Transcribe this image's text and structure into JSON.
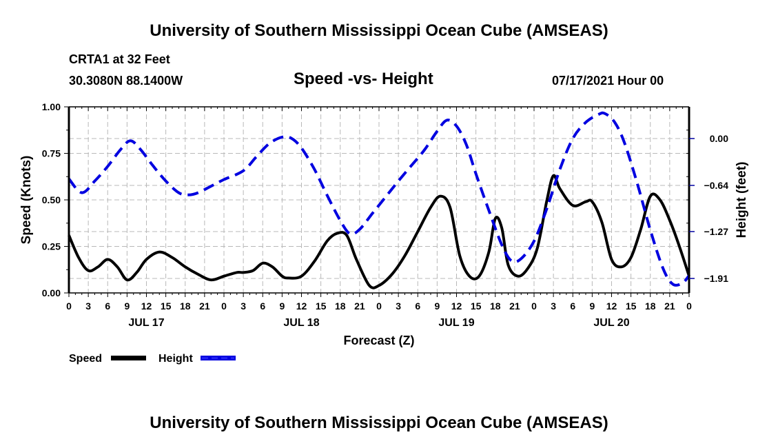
{
  "header": {
    "title": "University of Southern Mississippi Ocean Cube (AMSEAS)",
    "station": "CRTA1 at 32 Feet",
    "coordinates": "30.3080N  88.1400W",
    "subtitle": "Speed -vs- Height",
    "date": "07/17/2021 Hour 00"
  },
  "footer": {
    "title": "University of Southern Mississippi Ocean Cube (AMSEAS)"
  },
  "chart_data": {
    "type": "line",
    "title": "Speed -vs- Height",
    "xlabel": "Forecast (Z)",
    "ylabel": "Speed (Knots)",
    "y2label": "Height (feet)",
    "xlim": [
      0,
      96
    ],
    "ylim": [
      0,
      1.0
    ],
    "y2lim": [
      -2.05,
      0.49
    ],
    "grid": true,
    "x_ticks": [
      0,
      3,
      6,
      9,
      12,
      15,
      18,
      21,
      24,
      27,
      30,
      33,
      36,
      39,
      42,
      45,
      48,
      51,
      54,
      57,
      60,
      63,
      66,
      69,
      72,
      75,
      78,
      81,
      84,
      87,
      90,
      93,
      96
    ],
    "x_tick_labels": [
      "0",
      "3",
      "6",
      "9",
      "12",
      "15",
      "18",
      "21",
      "0",
      "3",
      "6",
      "9",
      "12",
      "15",
      "18",
      "21",
      "0",
      "3",
      "6",
      "9",
      "12",
      "15",
      "18",
      "21",
      "0",
      "3",
      "6",
      "9",
      "12",
      "15",
      "18",
      "21",
      "0"
    ],
    "day_labels": [
      {
        "label": "JUL 17",
        "hour": 12
      },
      {
        "label": "JUL 18",
        "hour": 36
      },
      {
        "label": "JUL 19",
        "hour": 60
      },
      {
        "label": "JUL 20",
        "hour": 84
      }
    ],
    "y_ticks": [
      0.0,
      0.25,
      0.5,
      0.75,
      1.0
    ],
    "y_tick_labels": [
      "0.00",
      "0.25",
      "0.50",
      "0.75",
      "1.00"
    ],
    "y2_ticks": [
      0.0,
      -0.64,
      -1.27,
      -1.91
    ],
    "y2_tick_labels": [
      "0.00",
      "-0.64",
      "-1.27",
      "-1.91"
    ],
    "legend": {
      "placement": "bottom-left",
      "entries": [
        {
          "label": "Speed",
          "style": "solid",
          "color": "#000000"
        },
        {
          "label": "Height",
          "style": "dashed",
          "color": "#0000e0"
        }
      ]
    },
    "series": [
      {
        "name": "Speed",
        "axis": "left",
        "color": "#000000",
        "x": [
          0,
          1.5,
          3,
          4.5,
          6,
          7.5,
          9,
          10.5,
          12,
          14,
          16,
          18,
          20,
          22,
          24,
          26,
          27,
          28.5,
          30,
          31.5,
          33,
          34,
          36,
          38,
          40,
          41.5,
          43,
          44.5,
          46.5,
          48,
          50,
          52,
          54,
          56,
          57.5,
          59,
          60.5,
          62,
          63.5,
          65,
          66,
          67,
          68,
          69.5,
          71,
          72.5,
          74,
          75,
          76,
          78,
          80,
          81,
          82.5,
          84,
          85.5,
          87,
          88.5,
          90,
          91.5,
          93,
          94.5,
          96
        ],
        "values": [
          0.31,
          0.19,
          0.12,
          0.14,
          0.18,
          0.14,
          0.07,
          0.11,
          0.18,
          0.22,
          0.19,
          0.14,
          0.1,
          0.07,
          0.09,
          0.11,
          0.11,
          0.12,
          0.16,
          0.14,
          0.09,
          0.08,
          0.09,
          0.17,
          0.28,
          0.32,
          0.31,
          0.18,
          0.04,
          0.04,
          0.1,
          0.2,
          0.33,
          0.46,
          0.52,
          0.46,
          0.2,
          0.09,
          0.09,
          0.22,
          0.4,
          0.35,
          0.15,
          0.09,
          0.13,
          0.24,
          0.5,
          0.63,
          0.56,
          0.47,
          0.49,
          0.49,
          0.38,
          0.18,
          0.14,
          0.19,
          0.34,
          0.52,
          0.5,
          0.39,
          0.25,
          0.09
        ]
      },
      {
        "name": "Height",
        "axis": "right",
        "color": "#0000e0",
        "x": [
          0,
          2,
          4,
          6,
          8,
          9.5,
          11,
          13,
          15,
          17,
          18.5,
          20,
          22,
          24,
          27,
          29,
          31,
          33,
          34.5,
          36,
          38,
          40,
          42,
          43.5,
          45,
          47,
          49,
          51,
          53,
          55,
          57,
          58.5,
          60,
          61.5,
          63,
          65,
          67,
          68.5,
          70,
          72,
          74,
          76,
          78,
          80,
          82,
          83,
          84.5,
          86,
          88,
          90,
          92,
          93.5,
          95,
          96
        ],
        "values": [
          -0.55,
          -0.74,
          -0.58,
          -0.38,
          -0.15,
          -0.03,
          -0.14,
          -0.37,
          -0.58,
          -0.74,
          -0.77,
          -0.74,
          -0.65,
          -0.56,
          -0.44,
          -0.25,
          -0.07,
          0.02,
          0.0,
          -0.13,
          -0.42,
          -0.78,
          -1.12,
          -1.3,
          -1.24,
          -1.02,
          -0.8,
          -0.58,
          -0.37,
          -0.16,
          0.1,
          0.25,
          0.17,
          -0.08,
          -0.48,
          -0.98,
          -1.45,
          -1.67,
          -1.64,
          -1.4,
          -0.95,
          -0.42,
          0.0,
          0.22,
          0.33,
          0.34,
          0.22,
          -0.06,
          -0.62,
          -1.25,
          -1.78,
          -1.99,
          -1.97,
          -1.87
        ]
      }
    ]
  }
}
